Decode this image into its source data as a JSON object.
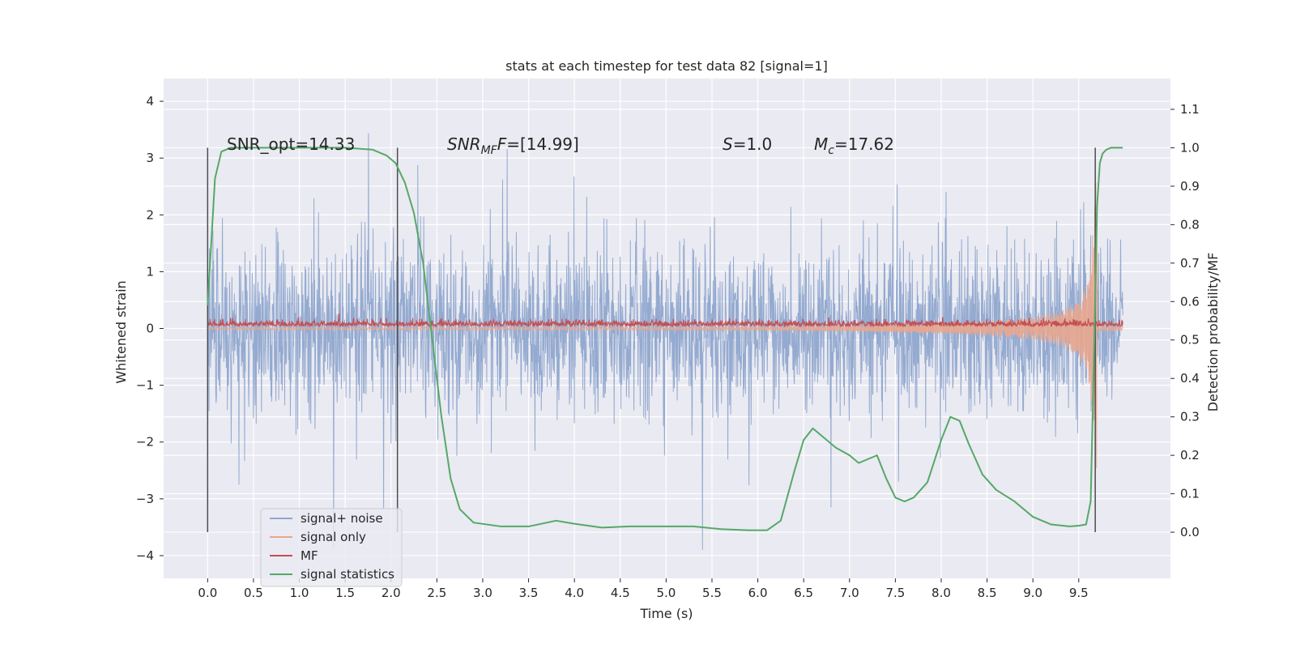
{
  "chart_data": {
    "type": "line",
    "title": "stats at each timestep for test data 82 [signal=1]",
    "xlabel": "Time (s)",
    "ylabel": "Whitened strain",
    "y2label": "Detection probability/MF",
    "xlim": [
      -0.48,
      10.5
    ],
    "ylim": [
      -4.4,
      4.4
    ],
    "y2lim": [
      -0.12,
      1.18
    ],
    "x_ticks": [
      0.0,
      0.5,
      1.0,
      1.5,
      2.0,
      2.5,
      3.0,
      3.5,
      4.0,
      4.5,
      5.0,
      5.5,
      6.0,
      6.5,
      7.0,
      7.5,
      8.0,
      8.5,
      9.0,
      9.5
    ],
    "x_tick_labels": [
      "0.0",
      "0.5",
      "1.0",
      "1.5",
      "2.0",
      "2.5",
      "3.0",
      "3.5",
      "4.0",
      "4.5",
      "5.0",
      "5.5",
      "6.0",
      "6.5",
      "7.0",
      "7.5",
      "8.0",
      "8.5",
      "9.0",
      "9.5"
    ],
    "y_ticks": [
      -4,
      -3,
      -2,
      -1,
      0,
      1,
      2,
      3,
      4
    ],
    "y_tick_labels": [
      "−4",
      "−3",
      "−2",
      "−1",
      "0",
      "1",
      "2",
      "3",
      "4"
    ],
    "y2_ticks": [
      0.0,
      0.1,
      0.2,
      0.3,
      0.4,
      0.5,
      0.6,
      0.7,
      0.8,
      0.9,
      1.0,
      1.1
    ],
    "y2_tick_labels": [
      "0.0",
      "0.1",
      "0.2",
      "0.3",
      "0.4",
      "0.5",
      "0.6",
      "0.7",
      "0.8",
      "0.9",
      "1.0",
      "1.1"
    ],
    "grid": true,
    "legend_placement": "lower-left",
    "annotations": {
      "snr_opt": "SNR_opt=14.33",
      "snr_mf_symbol": "SNR",
      "snr_mf_sub": "MF",
      "snr_mf_value": "=[14.99]",
      "s_symbol": "S",
      "s_value": "=1.0",
      "mc_symbol": "M",
      "mc_sub": "c",
      "mc_value": "=17.62"
    },
    "vertical_markers": [
      0.0,
      2.07,
      9.68
    ],
    "series": [
      {
        "name": "signal+ noise",
        "color": "#8fa6ce",
        "axis": "left",
        "style": "dense-noise",
        "x_range": [
          0.0,
          9.98
        ],
        "typical_amplitude": 1.3,
        "peak_amplitude": 4.0
      },
      {
        "name": "signal only",
        "color": "#e8a68e",
        "axis": "left",
        "style": "chirp",
        "envelope": {
          "t": [
            0.0,
            6.0,
            7.0,
            8.0,
            8.5,
            9.0,
            9.3,
            9.5,
            9.6,
            9.66,
            9.7
          ],
          "amp": [
            0.02,
            0.03,
            0.05,
            0.09,
            0.13,
            0.2,
            0.3,
            0.5,
            0.8,
            1.8,
            3.1
          ]
        },
        "after_merger_amp": 0.04
      },
      {
        "name": "MF",
        "color": "#c44e52",
        "axis": "left",
        "style": "noisy-band",
        "x_range": [
          0.0,
          9.98
        ],
        "baseline": 0.06,
        "typical_amplitude": 0.15,
        "peak_amplitude": 0.3
      },
      {
        "name": "signal statistics",
        "color": "#55a868",
        "axis": "right",
        "style": "line",
        "x": [
          0.0,
          0.08,
          0.15,
          0.25,
          0.5,
          1.0,
          1.5,
          1.8,
          1.95,
          2.05,
          2.15,
          2.25,
          2.35,
          2.45,
          2.55,
          2.65,
          2.75,
          2.9,
          3.2,
          3.5,
          3.8,
          4.0,
          4.3,
          4.6,
          5.0,
          5.3,
          5.6,
          5.9,
          6.1,
          6.25,
          6.4,
          6.5,
          6.6,
          6.7,
          6.85,
          7.0,
          7.1,
          7.2,
          7.3,
          7.4,
          7.5,
          7.6,
          7.7,
          7.85,
          8.0,
          8.1,
          8.2,
          8.3,
          8.45,
          8.6,
          8.8,
          9.0,
          9.2,
          9.4,
          9.5,
          9.58,
          9.63,
          9.67,
          9.7,
          9.73,
          9.76,
          9.8,
          9.85,
          9.98
        ],
        "y": [
          0.59,
          0.92,
          0.99,
          1.0,
          1.0,
          1.0,
          1.0,
          0.995,
          0.98,
          0.96,
          0.91,
          0.83,
          0.7,
          0.5,
          0.3,
          0.14,
          0.06,
          0.025,
          0.015,
          0.015,
          0.03,
          0.022,
          0.012,
          0.015,
          0.015,
          0.015,
          0.008,
          0.005,
          0.005,
          0.03,
          0.16,
          0.24,
          0.27,
          0.25,
          0.22,
          0.2,
          0.18,
          0.19,
          0.2,
          0.14,
          0.09,
          0.08,
          0.09,
          0.13,
          0.24,
          0.3,
          0.29,
          0.23,
          0.15,
          0.11,
          0.08,
          0.04,
          0.02,
          0.015,
          0.017,
          0.02,
          0.08,
          0.5,
          0.85,
          0.96,
          0.985,
          0.995,
          1.0,
          1.0
        ]
      }
    ]
  }
}
